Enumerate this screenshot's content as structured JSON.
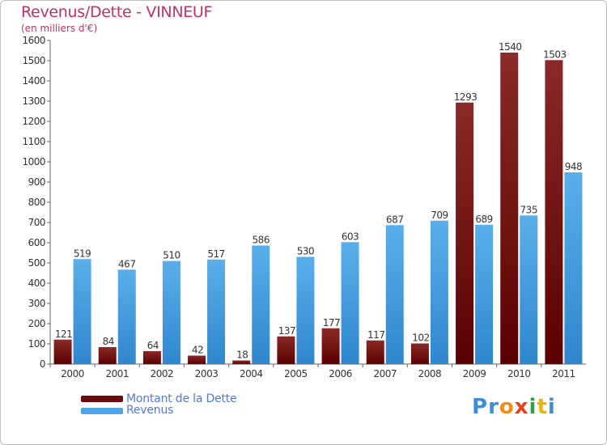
{
  "header": {
    "title": "Revenus/Dette - VINNEUF",
    "subtitle": "(en milliers d'€)"
  },
  "legend": {
    "debt_label": "Montant de la Dette",
    "revenue_label": "Revenus"
  },
  "brand": {
    "logo_letters": [
      "P",
      "r",
      "o",
      "x",
      "i",
      "t",
      "i"
    ],
    "logo_colors": [
      "#3a8fd6",
      "#3a8fd6",
      "#f28c1a",
      "#e8431a",
      "#2f9e44",
      "#e8b21a",
      "#3a8fd6"
    ]
  },
  "colors": {
    "debt": "#7a1010",
    "revenue": "#4da3e6"
  },
  "chart_data": {
    "type": "bar",
    "title": "Revenus/Dette - VINNEUF",
    "ylabel": "(en milliers d'€)",
    "xlabel": "",
    "ylim": [
      0,
      1600
    ],
    "ytick_step": 100,
    "grid": false,
    "legend_position": "bottom-left",
    "categories": [
      "2000",
      "2001",
      "2002",
      "2003",
      "2004",
      "2005",
      "2006",
      "2007",
      "2008",
      "2009",
      "2010",
      "2011"
    ],
    "series": [
      {
        "name": "Montant de la Dette",
        "values": [
          121,
          84,
          64,
          42,
          18,
          137,
          177,
          117,
          102,
          1293,
          1540,
          1503
        ]
      },
      {
        "name": "Revenus",
        "values": [
          519,
          467,
          510,
          517,
          586,
          530,
          603,
          687,
          709,
          689,
          735,
          948
        ]
      }
    ]
  }
}
